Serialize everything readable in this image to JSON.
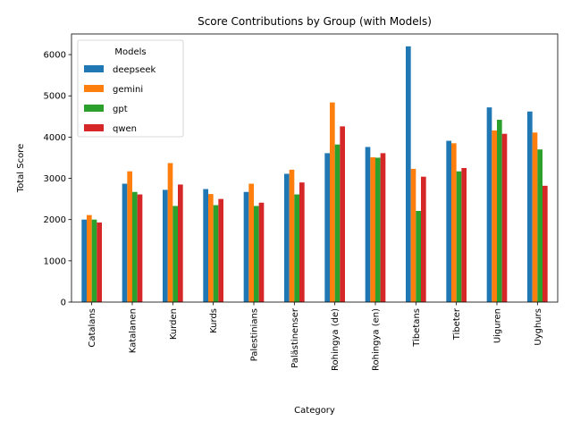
{
  "chart_data": {
    "type": "bar",
    "title": "Score Contributions by Group (with Models)",
    "xlabel": "Category",
    "ylabel": "Total Score",
    "ylim": [
      0,
      6500
    ],
    "yticks": [
      0,
      1000,
      2000,
      3000,
      4000,
      5000,
      6000
    ],
    "grid": false,
    "legend": {
      "title": "Models",
      "placement": "top-left"
    },
    "categories": [
      "Catalans",
      "Katalanen",
      "Kurden",
      "Kurds",
      "Palestinians",
      "Palästinenser",
      "Rohingya (de)",
      "Rohingya (en)",
      "Tibetans",
      "Tibeter",
      "Uiguren",
      "Uyghurs"
    ],
    "series": [
      {
        "name": "deepseek",
        "color": "#1f77b4",
        "values": [
          2000,
          2870,
          2720,
          2740,
          2670,
          3110,
          3610,
          3760,
          6200,
          3910,
          4720,
          4620
        ]
      },
      {
        "name": "gemini",
        "color": "#ff7f0e",
        "values": [
          2110,
          3170,
          3370,
          2620,
          2870,
          3210,
          4840,
          3510,
          3230,
          3850,
          4160,
          4110
        ]
      },
      {
        "name": "gpt",
        "color": "#2ca02c",
        "values": [
          2000,
          2670,
          2330,
          2350,
          2330,
          2610,
          3820,
          3500,
          2210,
          3170,
          4420,
          3700
        ]
      },
      {
        "name": "qwen",
        "color": "#d62728",
        "values": [
          1930,
          2610,
          2850,
          2500,
          2410,
          2900,
          4260,
          3610,
          3040,
          3250,
          4080,
          2820
        ]
      }
    ]
  }
}
